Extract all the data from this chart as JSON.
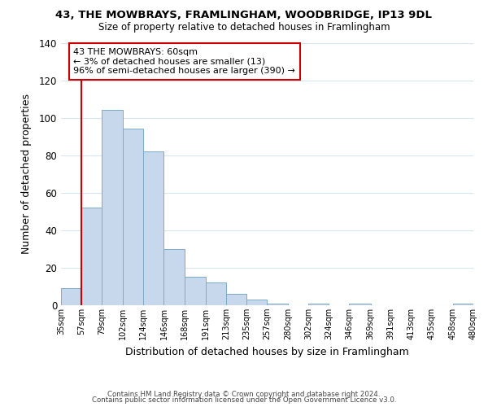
{
  "title": "43, THE MOWBRAYS, FRAMLINGHAM, WOODBRIDGE, IP13 9DL",
  "subtitle": "Size of property relative to detached houses in Framlingham",
  "xlabel": "Distribution of detached houses by size in Framlingham",
  "ylabel": "Number of detached properties",
  "bar_color": "#c8d8ec",
  "bar_edge_color": "#7baac8",
  "vline_color": "#cc0000",
  "vline_x": 57,
  "bin_edges": [
    35,
    57,
    79,
    102,
    124,
    146,
    168,
    191,
    213,
    235,
    257,
    280,
    302,
    324,
    346,
    369,
    391,
    413,
    435,
    458,
    480
  ],
  "bar_heights": [
    9,
    52,
    104,
    94,
    82,
    30,
    15,
    12,
    6,
    3,
    1,
    0,
    1,
    0,
    1,
    0,
    0,
    0,
    0,
    1
  ],
  "xlim": [
    35,
    480
  ],
  "ylim": [
    0,
    140
  ],
  "yticks": [
    0,
    20,
    40,
    60,
    80,
    100,
    120,
    140
  ],
  "xtick_labels": [
    "35sqm",
    "57sqm",
    "79sqm",
    "102sqm",
    "124sqm",
    "146sqm",
    "168sqm",
    "191sqm",
    "213sqm",
    "235sqm",
    "257sqm",
    "280sqm",
    "302sqm",
    "324sqm",
    "346sqm",
    "369sqm",
    "391sqm",
    "413sqm",
    "435sqm",
    "458sqm",
    "480sqm"
  ],
  "annotation_box_text": "43 THE MOWBRAYS: 60sqm\n← 3% of detached houses are smaller (13)\n96% of semi-detached houses are larger (390) →",
  "footer_line1": "Contains HM Land Registry data © Crown copyright and database right 2024.",
  "footer_line2": "Contains public sector information licensed under the Open Government Licence v3.0.",
  "background_color": "#ffffff",
  "grid_color": "#d8e4f0"
}
